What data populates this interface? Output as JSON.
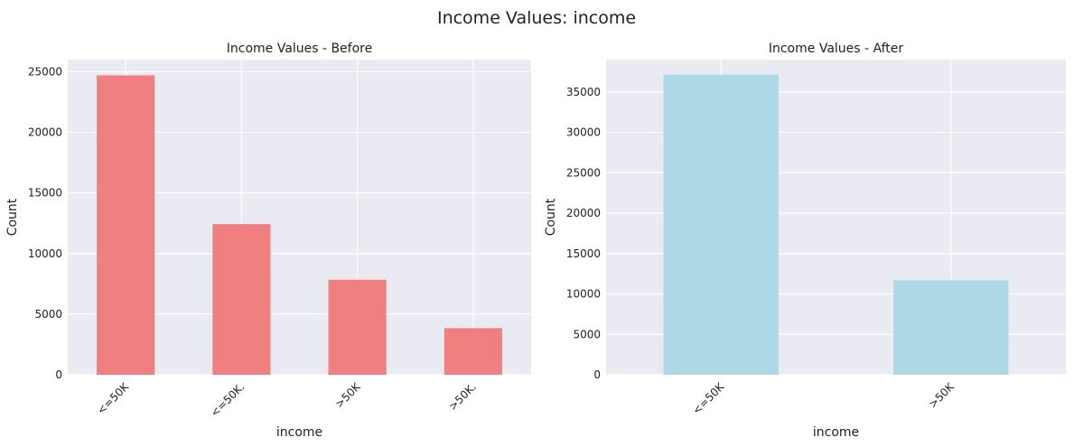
{
  "figure": {
    "title": "Income Values: income"
  },
  "chart_data": [
    {
      "type": "bar",
      "title": "Income Values - Before",
      "xlabel": "income",
      "ylabel": "Count",
      "categories": [
        "<=50K",
        "<=50K.",
        ">50K",
        ">50K."
      ],
      "values": [
        24700,
        12430,
        7840,
        3846
      ],
      "ylim": [
        0,
        26000
      ],
      "yticks": [
        0,
        5000,
        10000,
        15000,
        20000,
        25000
      ],
      "color": "#f08080",
      "grid": true
    },
    {
      "type": "bar",
      "title": "Income Values - After",
      "xlabel": "income",
      "ylabel": "Count",
      "categories": [
        "<=50K",
        ">50K"
      ],
      "values": [
        37155,
        11687
      ],
      "ylim": [
        0,
        39000
      ],
      "yticks": [
        0,
        5000,
        10000,
        15000,
        20000,
        25000,
        30000,
        35000
      ],
      "color": "#add8e6",
      "grid": true
    }
  ]
}
